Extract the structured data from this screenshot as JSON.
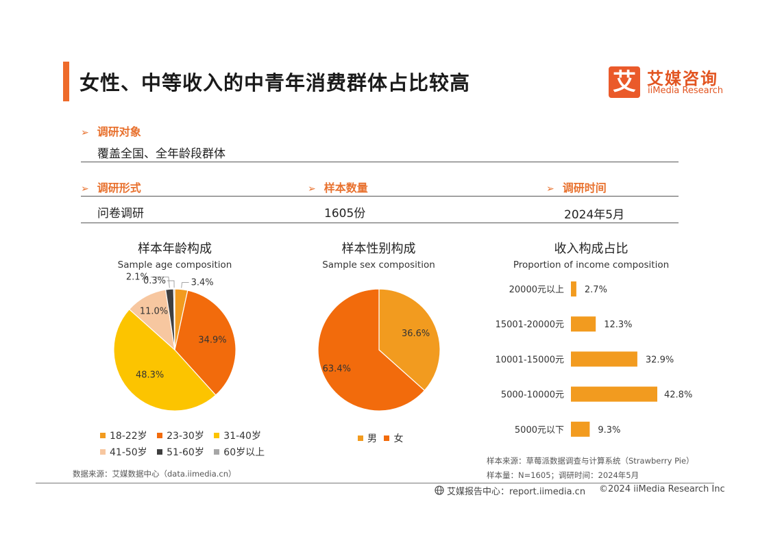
{
  "header": {
    "title": "女性、中等收入的中青年消费群体占比较高",
    "logo_badge": "艾",
    "logo_cn": "艾媒咨询",
    "logo_en": "iiMedia Research"
  },
  "survey": {
    "target_label": "调研对象",
    "target_value": "覆盖全国、全年龄段群体",
    "form_label": "调研形式",
    "form_value": "问卷调研",
    "sample_label": "样本数量",
    "sample_value": "1605份",
    "time_label": "调研时间",
    "time_value": "2024年5月"
  },
  "colors": {
    "accent": "#ee6b2b",
    "orange": "#f29b1f",
    "deep_orange": "#f26b0c",
    "yellow": "#fcc400",
    "peach": "#f7c7a0",
    "dark_gray": "#3f3f3f",
    "light_gray": "#a6a6a6"
  },
  "chart_data": [
    {
      "type": "pie",
      "title": "样本年龄构成",
      "subtitle": "Sample age composition",
      "categories": [
        "18-22岁",
        "23-30岁",
        "31-40岁",
        "41-50岁",
        "51-60岁",
        "60岁以上"
      ],
      "values": [
        3.4,
        34.9,
        48.3,
        11.0,
        2.1,
        0.3
      ],
      "labels": [
        "3.4%",
        "34.9%",
        "48.3%",
        "11.0%",
        "2.1%",
        "0.3%"
      ],
      "colors": [
        "#f29b1f",
        "#f26b0c",
        "#fcc400",
        "#f7c7a0",
        "#3f3f3f",
        "#a6a6a6"
      ],
      "legend": "bottom"
    },
    {
      "type": "pie",
      "title": "样本性别构成",
      "subtitle": "Sample sex composition",
      "categories": [
        "男",
        "女"
      ],
      "values": [
        36.6,
        63.4
      ],
      "labels": [
        "36.6%",
        "63.4%"
      ],
      "colors": [
        "#f29b1f",
        "#f26b0c"
      ],
      "legend": "bottom"
    },
    {
      "type": "bar",
      "orientation": "horizontal",
      "title": "收入构成占比",
      "subtitle": "Proportion of income composition",
      "categories": [
        "20000元以上",
        "15001-20000元",
        "10001-15000元",
        "5000-10000元",
        "5000元以下"
      ],
      "values": [
        2.7,
        12.3,
        32.9,
        42.8,
        9.3
      ],
      "labels": [
        "2.7%",
        "12.3%",
        "32.9%",
        "42.8%",
        "9.3%"
      ],
      "color": "#f29b1f"
    }
  ],
  "sources": {
    "left": "数据来源：艾媒数据中心（data.iimedia.cn）",
    "right_line1": "样本来源：草莓派数据调查与计算系统（Strawberry Pie）",
    "right_line2": "样本量：N=1605；调研时间：2024年5月"
  },
  "footer": {
    "center": "艾媒报告中心：report.iimedia.cn",
    "right": "©2024  iiMedia Research Inc"
  }
}
